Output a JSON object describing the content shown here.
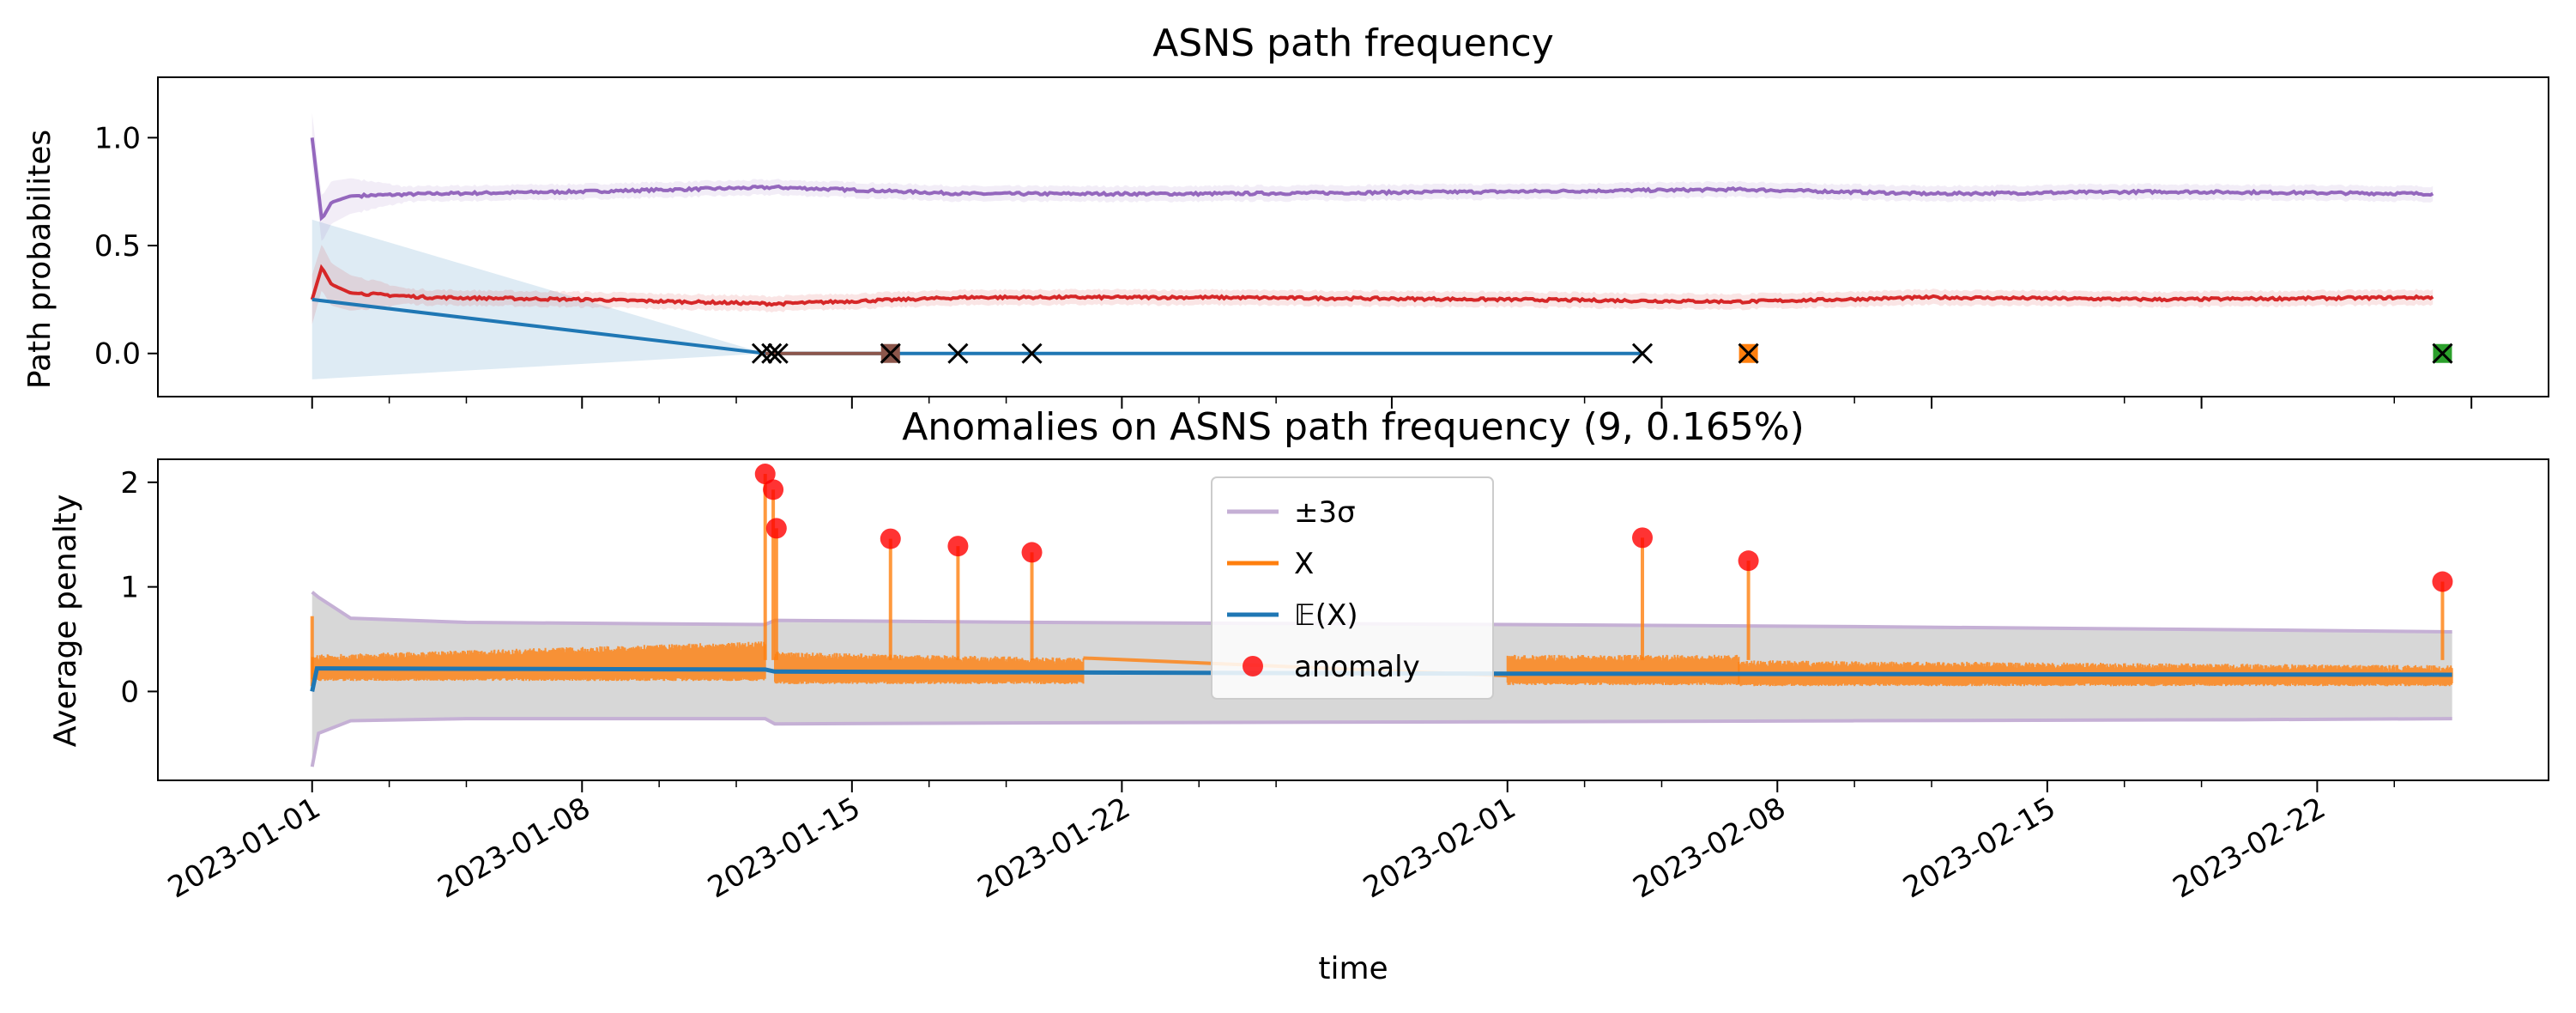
{
  "chart_data": [
    {
      "type": "line",
      "title": "ASNS path frequency",
      "ylabel": "Path probabilites",
      "xlabel": "",
      "ylim": [
        -0.2,
        1.28
      ],
      "xlim": [
        "2022-12-28",
        "2023-02-28"
      ],
      "grid": false,
      "yticks": [
        "0.0",
        "0.5",
        "1.0"
      ],
      "ytick_values": [
        0.0,
        0.5,
        1.0
      ],
      "series": [
        {
          "color": "#9467bd",
          "style": "noisy line with light band",
          "x": [
            "2023-01-01",
            "2023-01-01T06:00",
            "2023-01-01T12:00",
            "2023-01-02",
            "2023-01-04",
            "2023-01-08",
            "2023-01-13",
            "2023-01-18",
            "2023-01-24",
            "2023-02-01",
            "2023-02-07",
            "2023-02-12",
            "2023-02-18",
            "2023-02-25"
          ],
          "values": [
            1.0,
            0.62,
            0.7,
            0.73,
            0.74,
            0.75,
            0.77,
            0.74,
            0.74,
            0.75,
            0.76,
            0.74,
            0.75,
            0.74
          ]
        },
        {
          "color": "#d62728",
          "style": "noisy line with light band",
          "x": [
            "2023-01-01",
            "2023-01-01T06:00",
            "2023-01-01T12:00",
            "2023-01-02",
            "2023-01-04",
            "2023-01-08",
            "2023-01-13",
            "2023-01-18",
            "2023-01-24",
            "2023-02-01",
            "2023-02-07",
            "2023-02-12",
            "2023-02-18",
            "2023-02-25"
          ],
          "values": [
            0.25,
            0.4,
            0.32,
            0.28,
            0.26,
            0.25,
            0.23,
            0.26,
            0.26,
            0.25,
            0.24,
            0.26,
            0.25,
            0.26
          ]
        },
        {
          "color": "#1f77b4",
          "style": "line with wedge band",
          "x": [
            "2023-01-01",
            "2023-01-12T18:00",
            "2023-02-04T12:00"
          ],
          "values": [
            0.25,
            0.0,
            0.0
          ],
          "band_upper": [
            0.62,
            0.0,
            0.0
          ],
          "band_lower": [
            -0.12,
            0.0,
            0.0
          ]
        },
        {
          "color": "#8c564b",
          "style": "line",
          "x": [
            "2023-01-12T18:00",
            "2023-01-16"
          ],
          "values": [
            0.0,
            0.0
          ]
        }
      ],
      "markers": [
        {
          "x": "2023-01-12T16:00",
          "y": 0.0,
          "marker": "x",
          "face": ""
        },
        {
          "x": "2023-01-12T22:00",
          "y": 0.0,
          "marker": "x",
          "face": ""
        },
        {
          "x": "2023-01-13T02:00",
          "y": 0.0,
          "marker": "x",
          "face": ""
        },
        {
          "x": "2023-01-16",
          "y": 0.0,
          "marker": "x",
          "face": "#8c564b"
        },
        {
          "x": "2023-01-17T18:00",
          "y": 0.0,
          "marker": "x",
          "face": ""
        },
        {
          "x": "2023-01-19T16:00",
          "y": 0.0,
          "marker": "x",
          "face": ""
        },
        {
          "x": "2023-02-04T12:00",
          "y": 0.0,
          "marker": "x",
          "face": ""
        },
        {
          "x": "2023-02-07T06:00",
          "y": 0.0,
          "marker": "x",
          "face": "#ff7f0e"
        },
        {
          "x": "2023-02-25T06:00",
          "y": 0.0,
          "marker": "x",
          "face": "#2ca02c"
        }
      ]
    },
    {
      "type": "line",
      "title": "Anomalies on ASNS path frequency (9, 0.165%)",
      "ylabel": "Average penalty",
      "xlabel": "time",
      "ylim": [
        -0.85,
        2.22
      ],
      "xlim": [
        "2022-12-28",
        "2023-02-28"
      ],
      "grid": false,
      "yticks": [
        "0",
        "1",
        "2"
      ],
      "ytick_values": [
        0,
        1,
        2
      ],
      "xticks": [
        "2023-01-01",
        "2023-01-08",
        "2023-01-15",
        "2023-01-22",
        "2023-02-01",
        "2023-02-08",
        "2023-02-15",
        "2023-02-22"
      ],
      "legend_position": "top-center",
      "legend": [
        {
          "label": "±3σ",
          "color": "#c5b0d5"
        },
        {
          "label": "X",
          "color": "#ff7f0e"
        },
        {
          "label": "𝔼(X)",
          "color": "#1f77b4"
        },
        {
          "label": "anomaly",
          "color": "#ff0000"
        }
      ],
      "series": [
        {
          "name": "±3σ",
          "color": "#c5b0d5",
          "x": [
            "2023-01-01",
            "2023-01-01T04:00",
            "2023-01-02",
            "2023-01-05",
            "2023-01-12T18:00",
            "2023-01-13",
            "2023-01-20",
            "2023-02-01",
            "2023-02-10",
            "2023-02-20",
            "2023-02-25T12:00"
          ],
          "upper": [
            0.95,
            0.9,
            0.7,
            0.66,
            0.64,
            0.68,
            0.66,
            0.64,
            0.62,
            0.59,
            0.57
          ],
          "lower": [
            -0.72,
            -0.4,
            -0.28,
            -0.26,
            -0.26,
            -0.31,
            -0.3,
            -0.29,
            -0.28,
            -0.27,
            -0.26
          ]
        },
        {
          "name": "X",
          "color": "#ff7f0e",
          "segments": [
            {
              "x0": "2023-01-01",
              "x1": "2023-01-12T18:00",
              "low": 0.1,
              "high": [
                0.35,
                0.48
              ]
            },
            {
              "x0": "2023-01-13",
              "x1": "2023-01-21",
              "low": 0.07,
              "high": [
                0.38,
                0.32
              ]
            },
            {
              "x0": "2023-02-01",
              "x1": "2023-02-07",
              "low": 0.06,
              "high": [
                0.35,
                0.35
              ]
            },
            {
              "x0": "2023-02-07",
              "x1": "2023-02-25T12:00",
              "low": 0.05,
              "high": [
                0.3,
                0.25
              ]
            }
          ],
          "bridge": [
            {
              "x": "2023-01-21",
              "y": 0.32
            },
            {
              "x": "2023-02-01",
              "y": 0.15
            }
          ],
          "start_spike": 0.72
        },
        {
          "name": "𝔼(X)",
          "color": "#1f77b4",
          "x": [
            "2023-01-01",
            "2023-01-01T03:00",
            "2023-01-12T18:00",
            "2023-01-13",
            "2023-02-01",
            "2023-02-25T12:00"
          ],
          "values": [
            0.0,
            0.22,
            0.21,
            0.19,
            0.17,
            0.16
          ]
        }
      ],
      "anomalies": {
        "x": [
          "2023-01-12T18:00",
          "2023-01-12T23:00",
          "2023-01-13T01:00",
          "2023-01-16",
          "2023-01-17T18:00",
          "2023-01-19T16:00",
          "2023-02-04T12:00",
          "2023-02-07T06:00",
          "2023-02-25T06:00"
        ],
        "values": [
          2.08,
          1.93,
          1.56,
          1.46,
          1.39,
          1.33,
          1.47,
          1.25,
          1.05
        ]
      }
    }
  ]
}
